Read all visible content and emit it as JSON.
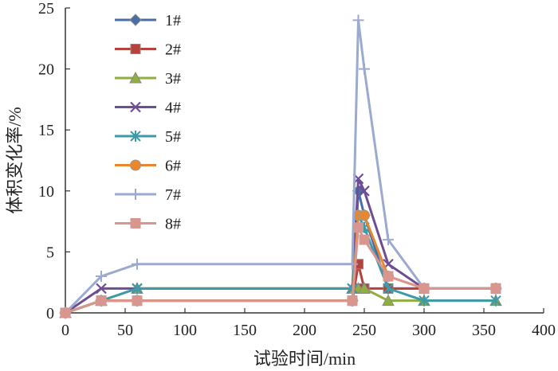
{
  "chart_data": {
    "type": "line",
    "xlabel": "试验时间/min",
    "ylabel": "体积变化率/%",
    "xlim": [
      0,
      400
    ],
    "ylim": [
      0,
      25
    ],
    "xticks": [
      0,
      50,
      100,
      150,
      200,
      250,
      300,
      350,
      400
    ],
    "yticks": [
      0,
      5,
      10,
      15,
      20,
      25
    ],
    "grid": false,
    "legend_position": "top-left",
    "series": [
      {
        "name": "1#",
        "color": "#4a6ea8",
        "marker": "diamond",
        "x": [
          0,
          30,
          60,
          240,
          245,
          250,
          270,
          300,
          360
        ],
        "y": [
          0,
          1,
          1,
          1,
          10,
          8,
          2,
          2,
          2
        ]
      },
      {
        "name": "2#",
        "color": "#b5423d",
        "marker": "square",
        "x": [
          0,
          30,
          60,
          240,
          245,
          250,
          270,
          300,
          360
        ],
        "y": [
          0,
          1,
          1,
          1,
          4,
          2,
          2,
          2,
          2
        ]
      },
      {
        "name": "3#",
        "color": "#8faf3f",
        "marker": "triangle",
        "x": [
          0,
          30,
          60,
          240,
          245,
          250,
          270,
          300,
          360
        ],
        "y": [
          0,
          1,
          2,
          2,
          2,
          2,
          1,
          1,
          1
        ]
      },
      {
        "name": "4#",
        "color": "#6d4e93",
        "marker": "x",
        "x": [
          0,
          30,
          60,
          240,
          245,
          250,
          270,
          300,
          360
        ],
        "y": [
          0,
          2,
          2,
          2,
          11,
          10,
          4,
          2,
          2
        ]
      },
      {
        "name": "5#",
        "color": "#3f9aa8",
        "marker": "asterisk",
        "x": [
          0,
          30,
          60,
          240,
          245,
          250,
          270,
          300,
          360
        ],
        "y": [
          0,
          1,
          2,
          2,
          8,
          7,
          2,
          1,
          1
        ]
      },
      {
        "name": "6#",
        "color": "#e8872e",
        "marker": "circle",
        "x": [
          0,
          30,
          60,
          240,
          245,
          250,
          270,
          300,
          360
        ],
        "y": [
          0,
          1,
          1,
          1,
          8,
          8,
          3,
          2,
          2
        ]
      },
      {
        "name": "7#",
        "color": "#9aaad0",
        "marker": "plus",
        "x": [
          0,
          30,
          60,
          240,
          245,
          250,
          270,
          300,
          360
        ],
        "y": [
          0,
          3,
          4,
          4,
          24,
          20,
          6,
          2,
          2
        ]
      },
      {
        "name": "8#",
        "color": "#d9968f",
        "marker": "line",
        "x": [
          0,
          30,
          60,
          240,
          245,
          250,
          270,
          300,
          360
        ],
        "y": [
          0,
          1,
          1,
          1,
          7,
          6,
          3,
          2,
          2
        ]
      }
    ]
  }
}
